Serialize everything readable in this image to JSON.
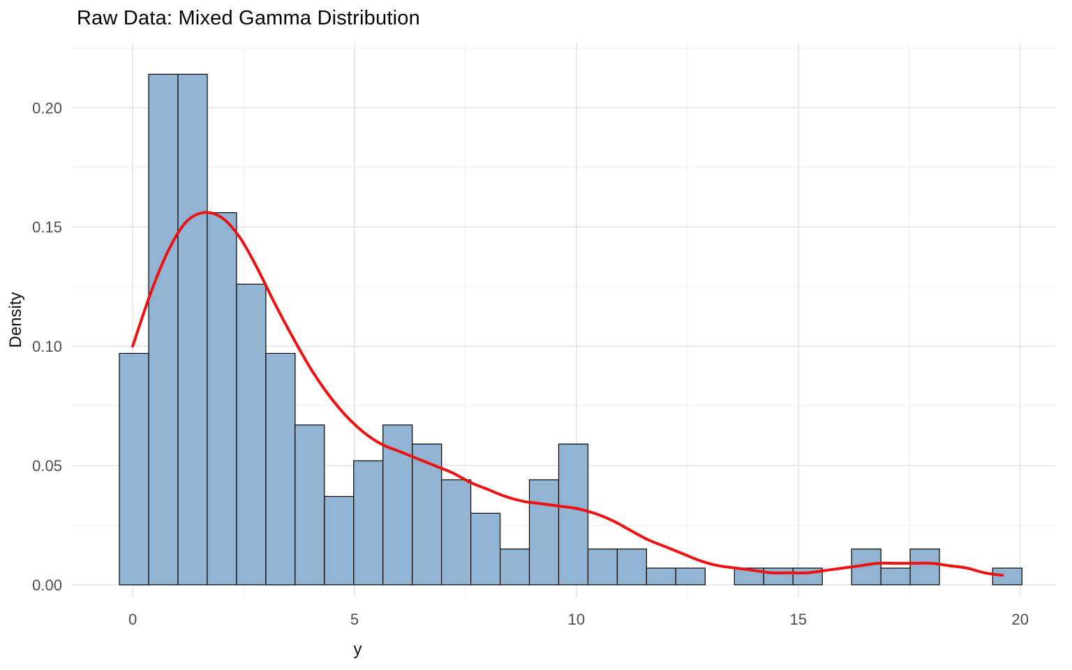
{
  "title": "Raw Data: Mixed Gamma Distribution",
  "chart_data": {
    "type": "bar",
    "subtype": "histogram_with_density_overlay",
    "title": "Raw Data: Mixed Gamma Distribution",
    "xlabel": "y",
    "ylabel": "Density",
    "xlim": [
      -1.37,
      20.79
    ],
    "ylim": [
      -0.005,
      0.227
    ],
    "x_ticks": [
      0,
      5,
      10,
      15,
      20
    ],
    "x_tick_labels": [
      "0",
      "5",
      "10",
      "15",
      "20"
    ],
    "y_ticks": [
      0,
      0.05,
      0.1,
      0.15,
      0.2
    ],
    "y_tick_labels": [
      "0.00",
      "0.05",
      "0.10",
      "0.15",
      "0.20"
    ],
    "x_minor_gridlines": [
      2.5,
      7.5,
      12.5,
      17.5
    ],
    "y_minor_gridlines": [
      0.025,
      0.075,
      0.125,
      0.175,
      0.225
    ],
    "grid": "on",
    "legend": "none",
    "bin_width": 0.66,
    "bars": [
      {
        "x": -0.3,
        "h": 0.097
      },
      {
        "x": 0.36,
        "h": 0.214
      },
      {
        "x": 1.02,
        "h": 0.214
      },
      {
        "x": 1.68,
        "h": 0.156
      },
      {
        "x": 2.34,
        "h": 0.126
      },
      {
        "x": 3.0,
        "h": 0.097
      },
      {
        "x": 3.66,
        "h": 0.067
      },
      {
        "x": 4.32,
        "h": 0.037
      },
      {
        "x": 4.98,
        "h": 0.052
      },
      {
        "x": 5.64,
        "h": 0.067
      },
      {
        "x": 6.3,
        "h": 0.059
      },
      {
        "x": 6.96,
        "h": 0.044
      },
      {
        "x": 7.62,
        "h": 0.03
      },
      {
        "x": 8.28,
        "h": 0.015
      },
      {
        "x": 8.94,
        "h": 0.044
      },
      {
        "x": 9.6,
        "h": 0.059
      },
      {
        "x": 10.26,
        "h": 0.015
      },
      {
        "x": 10.92,
        "h": 0.015
      },
      {
        "x": 11.58,
        "h": 0.007
      },
      {
        "x": 12.24,
        "h": 0.007
      },
      {
        "x": 13.56,
        "h": 0.007
      },
      {
        "x": 14.22,
        "h": 0.007
      },
      {
        "x": 14.88,
        "h": 0.007
      },
      {
        "x": 16.2,
        "h": 0.015
      },
      {
        "x": 16.86,
        "h": 0.007
      },
      {
        "x": 17.52,
        "h": 0.015
      },
      {
        "x": 19.38,
        "h": 0.007
      }
    ],
    "density": {
      "x": [
        0,
        0.4,
        0.8,
        1.2,
        1.6,
        2.0,
        2.4,
        2.8,
        3.2,
        3.6,
        4.0,
        4.4,
        4.8,
        5.2,
        5.6,
        6.0,
        6.4,
        6.8,
        7.2,
        7.6,
        8.0,
        8.4,
        8.8,
        9.2,
        9.6,
        10.0,
        10.4,
        10.8,
        11.2,
        11.6,
        12.0,
        12.4,
        12.8,
        13.2,
        13.6,
        14.0,
        14.4,
        14.8,
        15.2,
        15.6,
        16.0,
        16.4,
        16.8,
        17.2,
        17.6,
        18.0,
        18.4,
        18.8,
        19.2,
        19.6
      ],
      "y": [
        0.1,
        0.122,
        0.14,
        0.152,
        0.156,
        0.154,
        0.146,
        0.133,
        0.118,
        0.104,
        0.091,
        0.08,
        0.071,
        0.064,
        0.059,
        0.056,
        0.053,
        0.05,
        0.047,
        0.043,
        0.04,
        0.037,
        0.035,
        0.034,
        0.033,
        0.032,
        0.03,
        0.027,
        0.023,
        0.019,
        0.016,
        0.013,
        0.01,
        0.008,
        0.007,
        0.006,
        0.005,
        0.005,
        0.005,
        0.006,
        0.007,
        0.008,
        0.009,
        0.009,
        0.009,
        0.009,
        0.008,
        0.007,
        0.005,
        0.004
      ]
    },
    "colors": {
      "bar_fill": "#90b4d2",
      "bar_stroke": "#000000",
      "density_line": "#ee1111",
      "grid_major": "#e4e4e4",
      "grid_minor": "#f2f2f2",
      "axis_text": "#4d4d4d",
      "background": "#ffffff"
    }
  }
}
